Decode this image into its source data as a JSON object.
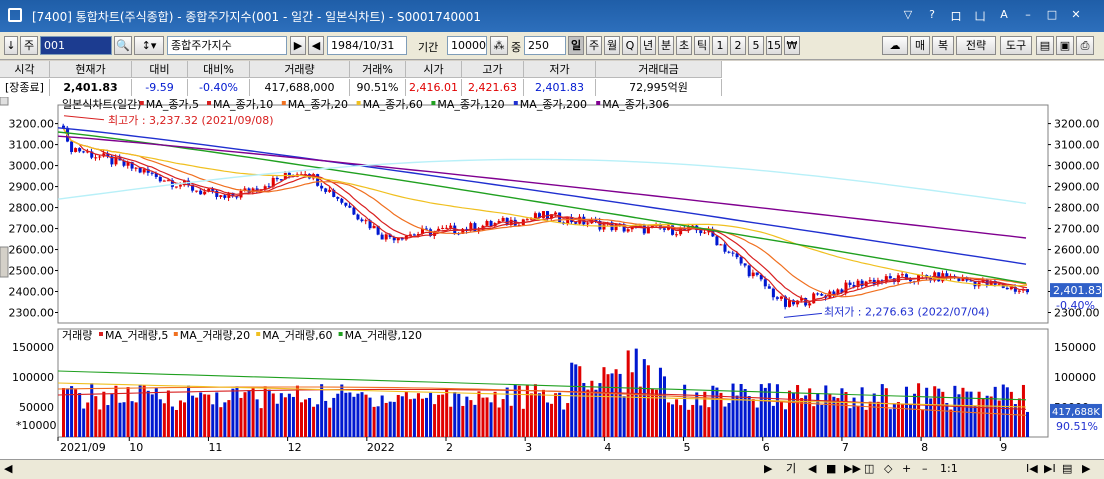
{
  "window": {
    "title": "[7400] 통합차트(주식종합) - 종합주가지수(001 - 일간 - 일본식차트) - S0001740001",
    "title_buttons": [
      "▽",
      "?",
      "口",
      "凵",
      "A",
      "–",
      "□",
      "✕"
    ]
  },
  "toolbar": {
    "arrow": "↓",
    "market": "주",
    "code": "001",
    "name": "종합주가지수",
    "date": "1984/10/31",
    "period_label": "기간",
    "period_value": "10000",
    "count_label": "중",
    "count_value": "250",
    "intervals": [
      "일",
      "주",
      "월",
      "Q",
      "년",
      "분",
      "초",
      "틱",
      "1",
      "2",
      "5",
      "15",
      "₩"
    ],
    "selected_interval": "일",
    "right_buttons": [
      "매",
      "복",
      "전략",
      "도구"
    ]
  },
  "quote": {
    "headers": [
      "시각",
      "현재가",
      "대비",
      "대비%",
      "거래량",
      "거래%",
      "시가",
      "고가",
      "저가",
      "거래대금"
    ],
    "values": [
      "[장종료]",
      "2,401.83",
      "-9.59",
      "-0.40%",
      "417,688,000",
      "90.51%",
      "2,416.01",
      "2,421.63",
      "2,401.83",
      "72,995억원"
    ]
  },
  "price_legend": {
    "prefix": "일본식차트(일간)",
    "items": [
      {
        "label": "MA_종가,5",
        "color": "#d82020"
      },
      {
        "label": "MA_종가,10",
        "color": "#d82020"
      },
      {
        "label": "MA_종가,20",
        "color": "#f07020"
      },
      {
        "label": "MA_종가,60",
        "color": "#f0c020"
      },
      {
        "label": "MA_종가,120",
        "color": "#20a020"
      },
      {
        "label": "MA_종가,200",
        "color": "#2030d0"
      },
      {
        "label": "MA_종가,306",
        "color": "#800090"
      }
    ]
  },
  "volume_legend": {
    "prefix": "거래량",
    "items": [
      {
        "label": "MA_거래량,5",
        "color": "#d82020"
      },
      {
        "label": "MA_거래량,20",
        "color": "#f07020"
      },
      {
        "label": "MA_거래량,60",
        "color": "#f0c020"
      },
      {
        "label": "MA_거래량,120",
        "color": "#20a020"
      }
    ]
  },
  "price_axis": {
    "ticks": [
      "3200.00",
      "3100.00",
      "3000.00",
      "2900.00",
      "2800.00",
      "2700.00",
      "2600.00",
      "2500.00",
      "2400.00",
      "2300.00"
    ]
  },
  "volume_axis": {
    "ticks": [
      "150000",
      "100000",
      "50000"
    ],
    "unit": "*10000"
  },
  "x_axis": {
    "labels": [
      "2021/09",
      "10",
      "11",
      "12",
      "2022",
      "2",
      "3",
      "4",
      "5",
      "6",
      "7",
      "8",
      "9"
    ]
  },
  "annotations": {
    "high": "최고가 : 3,237.32 (2021/09/08)",
    "low": "최저가 : 2,276.63 (2022/07/04)",
    "last_price": "2,401.83",
    "last_change": "-0.40%",
    "last_volume": "417,688K",
    "last_volume_pct": "90.51%"
  },
  "scroll_controls": [
    "기",
    "◀",
    "■",
    "▶▶",
    "◫",
    "◇",
    "+",
    "–",
    "1:1",
    "I◀",
    "▶I",
    "▤",
    "▶"
  ],
  "colors": {
    "up": "#e00000",
    "down": "#0018d0",
    "ma306_light": "#b8f0f8"
  },
  "chart_data": {
    "type": "candlestick",
    "title": "",
    "x_start": "2021/09",
    "x_end": "2022/09",
    "ylim": [
      2250,
      3260
    ],
    "high_point": {
      "value": 3237.32,
      "date": "2021/09/08"
    },
    "low_point": {
      "value": 2276.63,
      "date": "2022/07/04"
    },
    "close": 2401.83,
    "monthly_close_approx": {
      "categories": [
        "2021/09",
        "10",
        "11",
        "12",
        "2022/01",
        "2",
        "3",
        "4",
        "5",
        "6",
        "7",
        "8",
        "9"
      ],
      "values": [
        3100,
        2970,
        2840,
        2980,
        2660,
        2700,
        2760,
        2700,
        2690,
        2330,
        2450,
        2470,
        2402
      ]
    },
    "moving_averages_end": {
      "MA_종가,120": 2440,
      "MA_종가,200": 2530,
      "MA_종가,306": 2655,
      "MA_light": 2820
    },
    "volume_ylim": [
      0,
      180000
    ],
    "volume_unit": "*10000",
    "last_volume": 41768.8
  }
}
